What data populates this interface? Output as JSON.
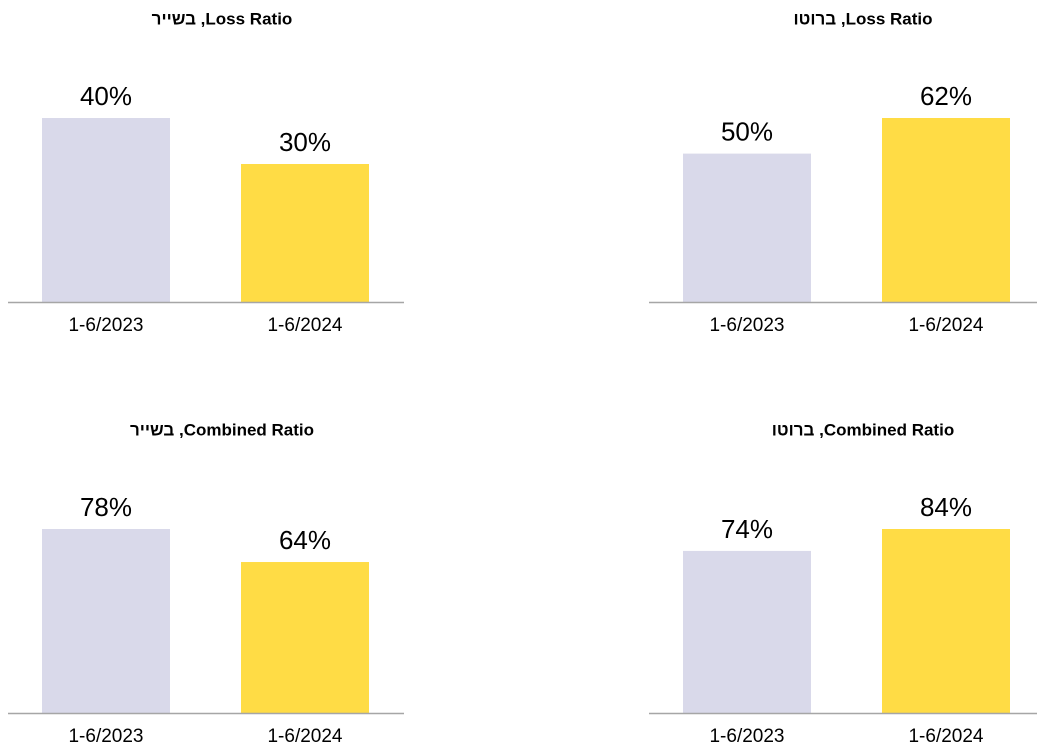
{
  "chart_data": [
    {
      "type": "bar",
      "title": "Loss Ratio, בשייר",
      "categories": [
        "1-6/2023",
        "1-6/2024"
      ],
      "values": [
        40,
        30
      ],
      "value_labels": [
        "40%",
        "30%"
      ],
      "colors": [
        "#d9d9ea",
        "#ffdc45"
      ],
      "ylim": [
        0,
        40
      ]
    },
    {
      "type": "bar",
      "title": "Loss Ratio, ברוטו",
      "categories": [
        "1-6/2023",
        "1-6/2024"
      ],
      "values": [
        50,
        62
      ],
      "value_labels": [
        "50%",
        "62%"
      ],
      "colors": [
        "#d9d9ea",
        "#ffdc45"
      ],
      "ylim": [
        0,
        62
      ]
    },
    {
      "type": "bar",
      "title": "Combined Ratio, בשייר",
      "categories": [
        "1-6/2023",
        "1-6/2024"
      ],
      "values": [
        78,
        64
      ],
      "value_labels": [
        "78%",
        "64%"
      ],
      "colors": [
        "#d9d9ea",
        "#ffdc45"
      ],
      "ylim": [
        0,
        78
      ]
    },
    {
      "type": "bar",
      "title": "Combined Ratio, ברוטו",
      "categories": [
        "1-6/2023",
        "1-6/2024"
      ],
      "values": [
        74,
        84
      ],
      "value_labels": [
        "74%",
        "84%"
      ],
      "colors": [
        "#d9d9ea",
        "#ffdc45"
      ],
      "ylim": [
        0,
        84
      ]
    }
  ]
}
